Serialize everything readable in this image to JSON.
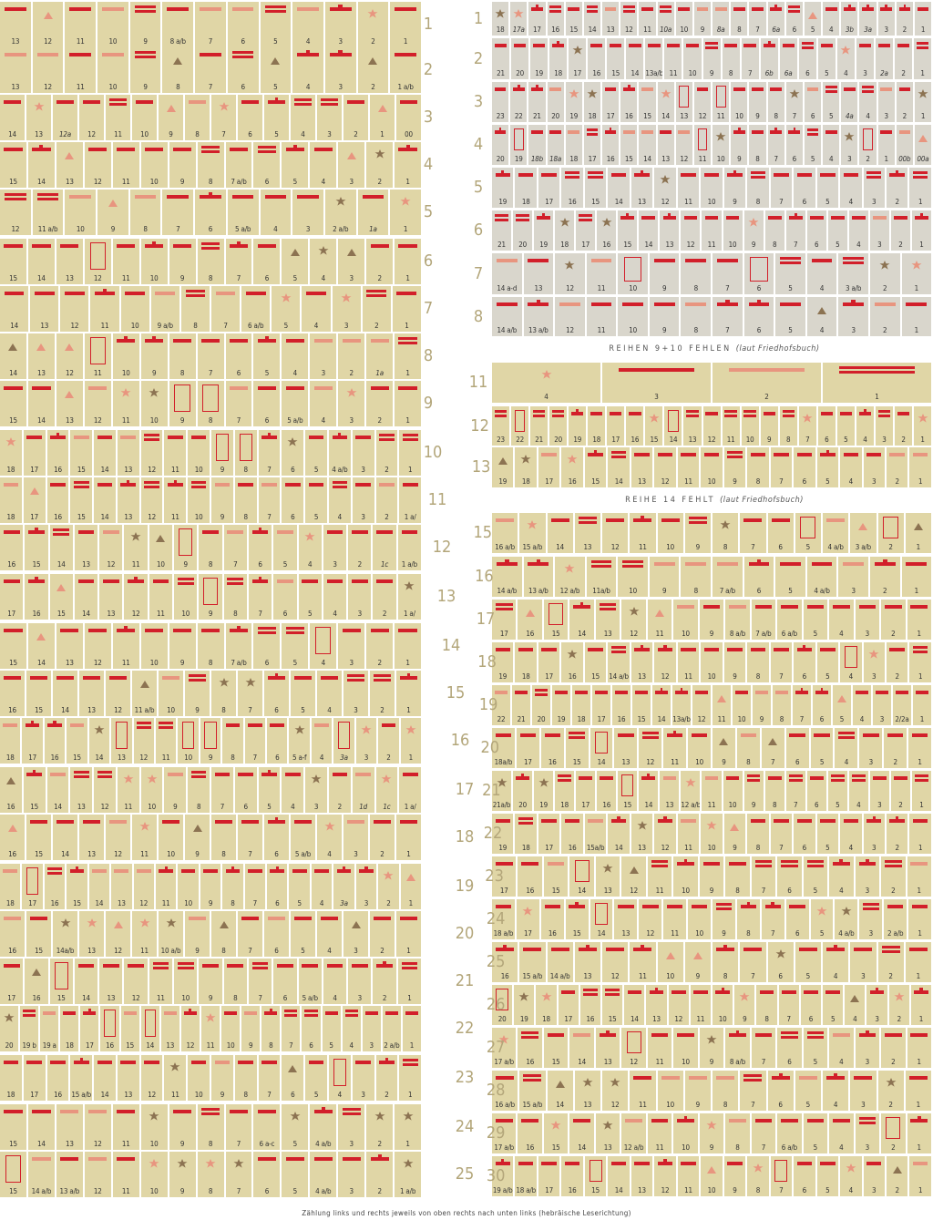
{
  "colors": {
    "red": "#d21f2a",
    "salmon": "#e8957f",
    "brown": "#8c7352",
    "cell": "#e0d6a6",
    "cell_gray": "#d9d6cc",
    "label": "#b3a67a"
  },
  "footer": "Zählung links und rechts jeweils von oben rechts nach unten links (hebräische Leserichtung)",
  "banners": {
    "b910": "REIHEN 9+10 FEHLEN",
    "b910_note": "(laut Friedhofsbuch)",
    "b14": "REIHE 14 FEHLT",
    "b14_note": "(laut Friedhofsbuch)"
  },
  "left_rows": [
    {
      "label": "1",
      "graves": [
        "13",
        "12",
        "11",
        "10",
        "9",
        "8 a/b",
        "7",
        "6",
        "5",
        "4",
        "3",
        "2",
        "1"
      ]
    },
    {
      "label": "2",
      "graves": [
        "13",
        "12",
        "11",
        "10",
        "9",
        "8",
        "7",
        "6",
        "5",
        "4",
        "3",
        "2",
        "1 a/b"
      ]
    },
    {
      "label": "3",
      "graves": [
        "14",
        "13",
        "12a",
        "12",
        "11",
        "10",
        "9",
        "8",
        "7",
        "6",
        "5",
        "4",
        "3",
        "2",
        "1",
        "00"
      ]
    },
    {
      "label": "4",
      "graves": [
        "15",
        "14",
        "13",
        "12",
        "11",
        "10",
        "9",
        "8",
        "7 a/b",
        "6",
        "5",
        "4",
        "3",
        "2",
        "1"
      ]
    },
    {
      "label": "5",
      "graves": [
        "12",
        "11 a/b",
        "10",
        "9",
        "8",
        "7",
        "6",
        "5 a/b",
        "4",
        "3",
        "2 a/b",
        "1a",
        "1"
      ]
    },
    {
      "label": "6",
      "graves": [
        "15",
        "14",
        "13",
        "12",
        "11",
        "10",
        "9",
        "8",
        "7",
        "6",
        "5",
        "4",
        "3",
        "2",
        "1"
      ]
    },
    {
      "label": "7",
      "graves": [
        "14",
        "13",
        "12",
        "11",
        "10",
        "9 a/b",
        "8",
        "7",
        "6 a/b",
        "5",
        "4",
        "3",
        "2",
        "1"
      ]
    },
    {
      "label": "8",
      "graves": [
        "14",
        "13",
        "12",
        "11",
        "10",
        "9",
        "8",
        "7",
        "6",
        "5",
        "4",
        "3",
        "2",
        "1a",
        "1"
      ]
    },
    {
      "label": "9",
      "graves": [
        "15",
        "14",
        "13",
        "12",
        "11",
        "10",
        "9",
        "8",
        "7",
        "6",
        "5 a/b",
        "4",
        "3",
        "2",
        "1"
      ]
    },
    {
      "label": "10",
      "graves": [
        "18",
        "17",
        "16",
        "15",
        "14",
        "13",
        "12",
        "11",
        "10",
        "9",
        "8",
        "7",
        "6",
        "5",
        "4 a/b",
        "3",
        "2",
        "1"
      ]
    },
    {
      "label": "11",
      "graves": [
        "18",
        "17",
        "16",
        "15",
        "14",
        "13",
        "12",
        "11",
        "10",
        "9",
        "8",
        "7",
        "6",
        "5",
        "4",
        "3",
        "2",
        "1 a/"
      ]
    },
    {
      "label": "12",
      "graves": [
        "16",
        "15",
        "14",
        "13",
        "12",
        "11",
        "10",
        "9",
        "8",
        "7",
        "6",
        "5",
        "4",
        "3",
        "2",
        "1c",
        "1 a/b"
      ]
    },
    {
      "label": "13",
      "graves": [
        "17",
        "16",
        "15",
        "14",
        "13",
        "12",
        "11",
        "10",
        "9",
        "8",
        "7",
        "6",
        "5",
        "4",
        "3",
        "2",
        "1 a/"
      ]
    },
    {
      "label": "14",
      "graves": [
        "15",
        "14",
        "13",
        "12",
        "11",
        "10",
        "9",
        "8",
        "7 a/b",
        "6",
        "5",
        "4",
        "3",
        "2",
        "1"
      ]
    },
    {
      "label": "15",
      "graves": [
        "16",
        "15",
        "14",
        "13",
        "12",
        "11 a/b",
        "10",
        "9",
        "8",
        "7",
        "6",
        "5",
        "4",
        "3",
        "2",
        "1"
      ]
    },
    {
      "label": "16",
      "graves": [
        "18",
        "17",
        "16",
        "15",
        "14",
        "13",
        "12",
        "11",
        "10",
        "9",
        "8",
        "7",
        "6",
        "5 a-f",
        "4",
        "3a",
        "3",
        "2",
        "1"
      ]
    },
    {
      "label": "17",
      "graves": [
        "16",
        "15",
        "14",
        "13",
        "12",
        "11",
        "10",
        "9",
        "8",
        "7",
        "6",
        "5",
        "4",
        "3",
        "2",
        "1d",
        "1c",
        "1 a/"
      ]
    },
    {
      "label": "18",
      "graves": [
        "16",
        "15",
        "14",
        "13",
        "12",
        "11",
        "10",
        "9",
        "8",
        "7",
        "6",
        "5 a/b",
        "4",
        "3",
        "2",
        "1"
      ]
    },
    {
      "label": "19",
      "graves": [
        "18",
        "17",
        "16",
        "15",
        "14",
        "13",
        "12",
        "11",
        "10",
        "9",
        "8",
        "7",
        "6",
        "5",
        "4",
        "3a",
        "3",
        "2",
        "1"
      ]
    },
    {
      "label": "20",
      "graves": [
        "16",
        "15",
        "14a/b",
        "13",
        "12",
        "11",
        "10 a/b",
        "9",
        "8",
        "7",
        "6",
        "5",
        "4",
        "3",
        "2",
        "1"
      ]
    },
    {
      "label": "21",
      "graves": [
        "17",
        "16",
        "15",
        "14",
        "13",
        "12",
        "11",
        "10",
        "9",
        "8",
        "7",
        "6",
        "5 a/b",
        "4",
        "3",
        "2",
        "1"
      ]
    },
    {
      "label": "22",
      "graves": [
        "20",
        "19 b",
        "19 a",
        "18",
        "17",
        "16",
        "15",
        "14",
        "13",
        "12",
        "11",
        "10",
        "9",
        "8",
        "7",
        "6",
        "5",
        "4",
        "3",
        "2 a/b",
        "1"
      ]
    },
    {
      "label": "23",
      "graves": [
        "18",
        "17",
        "16",
        "15 a/b",
        "14",
        "13",
        "12",
        "11",
        "10",
        "9",
        "8",
        "7",
        "6",
        "5",
        "4",
        "3",
        "2",
        "1"
      ]
    },
    {
      "label": "24",
      "graves": [
        "15",
        "14",
        "13",
        "12",
        "11",
        "10",
        "9",
        "8",
        "7",
        "6 a-c",
        "5",
        "4 a/b",
        "3",
        "2",
        "1"
      ]
    },
    {
      "label": "25",
      "graves": [
        "15",
        "14 a/b",
        "13 a/b",
        "12",
        "11",
        "10",
        "9",
        "8",
        "7",
        "6",
        "5",
        "4 a/b",
        "3",
        "2",
        "1 a/b"
      ]
    }
  ],
  "right_rows": [
    {
      "label": "1",
      "graves": [
        "18",
        "17a",
        "17",
        "16",
        "15",
        "14",
        "13",
        "12",
        "11",
        "10a",
        "10",
        "9",
        "8a",
        "8",
        "7",
        "6a",
        "6",
        "5",
        "4",
        "3b",
        "3a",
        "3",
        "2",
        "1"
      ]
    },
    {
      "label": "2",
      "graves": [
        "21",
        "20",
        "19",
        "18",
        "17",
        "16",
        "15",
        "14",
        "13a/b",
        "11",
        "10",
        "9",
        "8",
        "7",
        "6b",
        "6a",
        "6",
        "5",
        "4",
        "3",
        "2a",
        "2",
        "1"
      ]
    },
    {
      "label": "3",
      "graves": [
        "23",
        "22",
        "21",
        "20",
        "19",
        "18",
        "17",
        "16",
        "15",
        "14",
        "13",
        "12",
        "11",
        "10",
        "9",
        "8",
        "7",
        "6",
        "5",
        "4a",
        "4",
        "3",
        "2",
        "1"
      ]
    },
    {
      "label": "4",
      "graves": [
        "20",
        "19",
        "18b",
        "18a",
        "18",
        "17",
        "16",
        "15",
        "14",
        "13",
        "12",
        "11",
        "10",
        "9",
        "8",
        "7",
        "6",
        "5",
        "4",
        "3",
        "2",
        "1",
        "00b",
        "00a"
      ]
    },
    {
      "label": "5",
      "graves": [
        "19",
        "18",
        "17",
        "16",
        "15",
        "14",
        "13",
        "12",
        "11",
        "10",
        "9",
        "8",
        "7",
        "6",
        "5",
        "4",
        "3",
        "2",
        "1"
      ]
    },
    {
      "label": "6",
      "graves": [
        "21",
        "20",
        "19",
        "18",
        "17",
        "16",
        "15",
        "14",
        "13",
        "12",
        "11",
        "10",
        "9",
        "8",
        "7",
        "6",
        "5",
        "4",
        "3",
        "2",
        "1"
      ]
    },
    {
      "label": "7",
      "graves": [
        "14 a-d",
        "13",
        "12",
        "11",
        "10",
        "9",
        "8",
        "7",
        "6",
        "5",
        "4",
        "3 a/b",
        "2",
        "1"
      ]
    },
    {
      "label": "8",
      "graves": [
        "14 a/b",
        "13 a/b",
        "12",
        "11",
        "10",
        "9",
        "8",
        "7",
        "6",
        "5",
        "4",
        "3",
        "2",
        "1"
      ]
    },
    {
      "label": "11",
      "graves": [
        "4",
        "3",
        "2",
        "1"
      ]
    },
    {
      "label": "12",
      "graves": [
        "23",
        "22",
        "21",
        "20",
        "19",
        "18",
        "17",
        "16",
        "15",
        "14",
        "13",
        "12",
        "11",
        "10",
        "9",
        "8",
        "7",
        "6",
        "5",
        "4",
        "3",
        "2",
        "1"
      ]
    },
    {
      "label": "13",
      "graves": [
        "19",
        "18",
        "17",
        "16",
        "15",
        "14",
        "13",
        "12",
        "11",
        "10",
        "9",
        "8",
        "7",
        "6",
        "5",
        "4",
        "3",
        "2",
        "1"
      ]
    },
    {
      "label": "15",
      "graves": [
        "16 a/b",
        "15 a/b",
        "14",
        "13",
        "12",
        "11",
        "10",
        "9",
        "8",
        "7",
        "6",
        "5",
        "4 a/b",
        "3 a/b",
        "2",
        "1"
      ]
    },
    {
      "label": "16",
      "graves": [
        "14 a/b",
        "13 a/b",
        "12 a/b",
        "11a/b",
        "10",
        "9",
        "8",
        "7 a/b",
        "6",
        "5",
        "4 a/b",
        "3",
        "2",
        "1"
      ]
    },
    {
      "label": "17",
      "graves": [
        "17",
        "16",
        "15",
        "14",
        "13",
        "12",
        "11",
        "10",
        "9",
        "8 a/b",
        "7 a/b",
        "6 a/b",
        "5",
        "4",
        "3",
        "2",
        "1"
      ]
    },
    {
      "label": "18",
      "graves": [
        "19",
        "18",
        "17",
        "16",
        "15",
        "14 a/b",
        "13",
        "12",
        "11",
        "10",
        "9",
        "8",
        "7",
        "6",
        "5",
        "4",
        "3",
        "2",
        "1"
      ]
    },
    {
      "label": "19",
      "graves": [
        "22",
        "21",
        "20",
        "19",
        "18",
        "17",
        "16",
        "15",
        "14",
        "13a/b",
        "12",
        "11",
        "10",
        "9",
        "8",
        "7",
        "6",
        "5",
        "4",
        "3",
        "2/2a",
        "1"
      ]
    },
    {
      "label": "20",
      "graves": [
        "18a/b",
        "17",
        "16",
        "15",
        "14",
        "13",
        "12",
        "11",
        "10",
        "9",
        "8",
        "7",
        "6",
        "5",
        "4",
        "3",
        "2",
        "1"
      ]
    },
    {
      "label": "21",
      "graves": [
        "21a/b",
        "20",
        "19",
        "18",
        "17",
        "16",
        "15",
        "14",
        "13",
        "12 a/b",
        "11",
        "10",
        "9",
        "8",
        "7",
        "6",
        "5",
        "4",
        "3",
        "2",
        "1"
      ]
    },
    {
      "label": "22",
      "graves": [
        "19",
        "18",
        "17",
        "16",
        "15a/b",
        "14",
        "13",
        "12",
        "11",
        "10",
        "9",
        "8",
        "7",
        "6",
        "5",
        "4",
        "3",
        "2",
        "1"
      ]
    },
    {
      "label": "23",
      "graves": [
        "17",
        "16",
        "15",
        "14",
        "13",
        "12",
        "11",
        "10",
        "9",
        "8",
        "7",
        "6",
        "5",
        "4",
        "3",
        "2",
        "1"
      ]
    },
    {
      "label": "24",
      "graves": [
        "18 a/b",
        "17",
        "16",
        "15",
        "14",
        "13",
        "12",
        "11",
        "10",
        "9",
        "8",
        "7",
        "6",
        "5",
        "4 a/b",
        "3",
        "2 a/b",
        "1"
      ]
    },
    {
      "label": "25",
      "graves": [
        "16",
        "15 a/b",
        "14 a/b",
        "13",
        "12",
        "11",
        "10",
        "9",
        "8",
        "7",
        "6",
        "5",
        "4",
        "3",
        "2",
        "1"
      ]
    },
    {
      "label": "26",
      "graves": [
        "20",
        "19",
        "18",
        "17",
        "16",
        "15",
        "14",
        "13",
        "12",
        "11",
        "10",
        "9",
        "8",
        "7",
        "6",
        "5",
        "4",
        "3",
        "2",
        "1"
      ]
    },
    {
      "label": "27",
      "graves": [
        "17 a/b",
        "16",
        "15",
        "14",
        "13",
        "12",
        "11",
        "10",
        "9",
        "8 a/b",
        "7",
        "6",
        "5",
        "4",
        "3",
        "2",
        "1"
      ]
    },
    {
      "label": "28",
      "graves": [
        "16 a/b",
        "15 a/b",
        "14",
        "13",
        "12",
        "11",
        "10",
        "9",
        "8",
        "7",
        "6",
        "5",
        "4",
        "3",
        "2",
        "1"
      ]
    },
    {
      "label": "29",
      "graves": [
        "17 a/b",
        "16",
        "15",
        "14",
        "13",
        "12 a/b",
        "11",
        "10",
        "9",
        "8",
        "7",
        "6 a/b",
        "5",
        "4",
        "3",
        "2",
        "1"
      ]
    },
    {
      "label": "30",
      "graves": [
        "19 a/b",
        "18 a/b",
        "17",
        "16",
        "15",
        "14",
        "13",
        "12",
        "11",
        "10",
        "9",
        "8",
        "7",
        "6",
        "5",
        "4",
        "3",
        "2",
        "1"
      ]
    }
  ]
}
